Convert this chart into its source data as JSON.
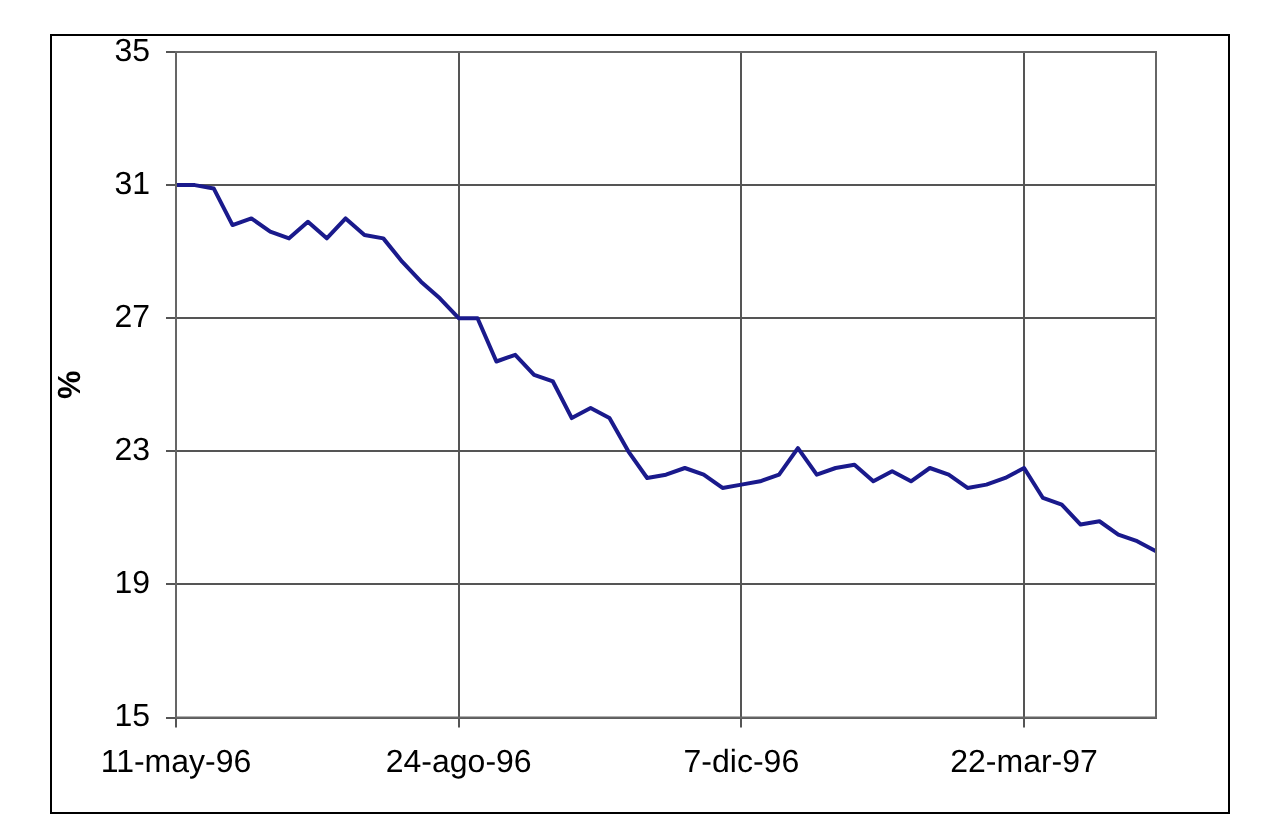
{
  "chart_data": {
    "type": "line",
    "ylabel": "%",
    "x": [
      "1996-05-11",
      "1996-05-18",
      "1996-05-25",
      "1996-06-01",
      "1996-06-08",
      "1996-06-15",
      "1996-06-22",
      "1996-06-29",
      "1996-07-06",
      "1996-07-13",
      "1996-07-20",
      "1996-07-27",
      "1996-08-03",
      "1996-08-10",
      "1996-08-17",
      "1996-08-24",
      "1996-08-31",
      "1996-09-07",
      "1996-09-14",
      "1996-09-21",
      "1996-09-28",
      "1996-10-05",
      "1996-10-12",
      "1996-10-19",
      "1996-10-26",
      "1996-11-02",
      "1996-11-09",
      "1996-11-16",
      "1996-11-23",
      "1996-11-30",
      "1996-12-07",
      "1996-12-14",
      "1996-12-21",
      "1996-12-28",
      "1997-01-04",
      "1997-01-11",
      "1997-01-18",
      "1997-01-25",
      "1997-02-01",
      "1997-02-08",
      "1997-02-15",
      "1997-02-22",
      "1997-03-01",
      "1997-03-08",
      "1997-03-15",
      "1997-03-22",
      "1997-03-29",
      "1997-04-05",
      "1997-04-12",
      "1997-04-19",
      "1997-04-26",
      "1997-05-03",
      "1997-05-10"
    ],
    "series": [
      {
        "color": "#1a1a8c",
        "values": [
          31.0,
          31.0,
          30.9,
          29.8,
          30.0,
          29.6,
          29.4,
          29.9,
          29.4,
          30.0,
          29.5,
          29.4,
          28.7,
          28.1,
          27.6,
          27.0,
          27.0,
          25.7,
          25.9,
          25.3,
          25.1,
          24.0,
          24.3,
          24.0,
          23.0,
          22.2,
          22.3,
          22.5,
          22.3,
          21.9,
          22.0,
          22.1,
          22.3,
          23.1,
          22.3,
          22.5,
          22.6,
          22.1,
          22.4,
          22.1,
          22.5,
          22.3,
          21.9,
          22.0,
          22.2,
          22.5,
          21.6,
          21.4,
          20.8,
          20.9,
          20.5,
          20.3,
          20.0
        ]
      }
    ],
    "xlim": [
      "1996-05-11",
      "1997-05-10"
    ],
    "xticks": [
      {
        "value": "1996-05-11",
        "label": "11-may-96"
      },
      {
        "value": "1996-08-24",
        "label": "24-ago-96"
      },
      {
        "value": "1996-12-07",
        "label": "7-dic-96"
      },
      {
        "value": "1997-03-22",
        "label": "22-mar-97"
      }
    ],
    "ylim": [
      15,
      35
    ],
    "yticks": [
      15,
      19,
      23,
      27,
      31,
      35
    ],
    "grid": true,
    "legend": false,
    "marker": "none",
    "line_style": "solid"
  }
}
